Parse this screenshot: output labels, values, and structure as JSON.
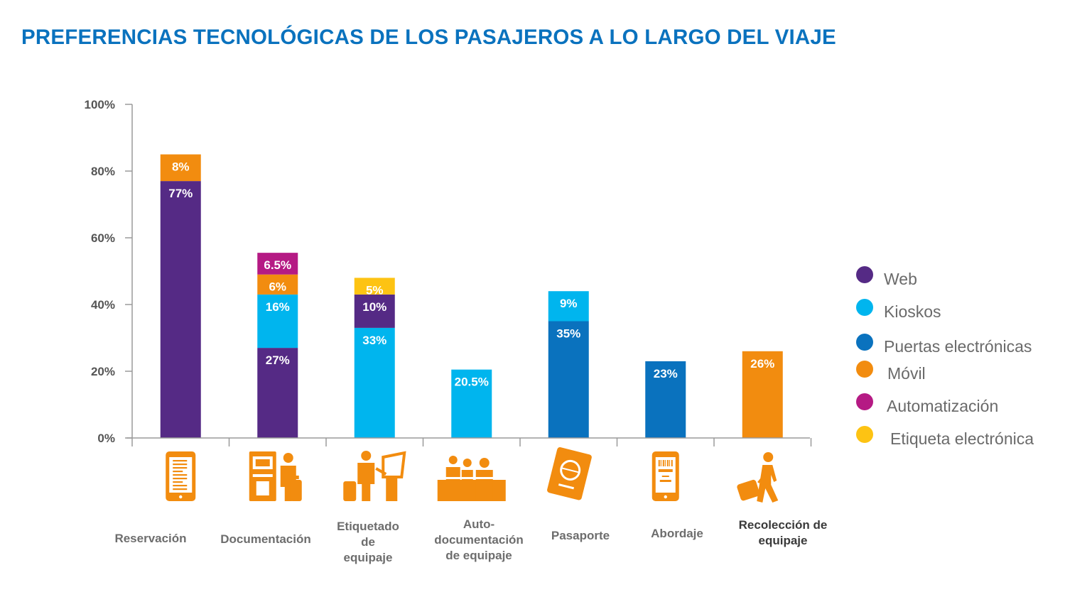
{
  "title": "PREFERENCIAS TECNOLÓGICAS DE LOS PASAJEROS A LO LARGO DEL VIAJE",
  "colors": {
    "Web": "#552a85",
    "Kioskos": "#00b5ee",
    "Puertas electrónicas": "#0a72be",
    "Móvil": "#f28c0f",
    "Automatización": "#b51a84",
    "Etiqueta electrónica": "#fdc313",
    "axis": "#9a9a9a",
    "icon": "#f28c0f"
  },
  "chart_data": {
    "type": "bar",
    "stacked": true,
    "title": "PREFERENCIAS TECNOLÓGICAS DE LOS PASAJEROS A LO LARGO DEL VIAJE",
    "ylim": [
      0,
      100
    ],
    "yticks": [
      0,
      20,
      40,
      60,
      80,
      100
    ],
    "ytick_labels": [
      "0%",
      "20%",
      "40%",
      "60%",
      "80%",
      "100%"
    ],
    "grid": false,
    "legend_position": "right",
    "categories": [
      {
        "lines": [
          "Reservación"
        ],
        "icon": "tablet-icon"
      },
      {
        "lines": [
          "Documentación"
        ],
        "icon": "kiosk-icon"
      },
      {
        "lines": [
          "Etiquetado",
          "de",
          "equipaje"
        ],
        "icon": "bag-tag-kiosk-icon"
      },
      {
        "lines": [
          "Auto-",
          "documentación",
          "de equipaje"
        ],
        "icon": "bag-drop-icon"
      },
      {
        "lines": [
          "Pasaporte"
        ],
        "icon": "passport-icon"
      },
      {
        "lines": [
          "Abordaje"
        ],
        "icon": "boarding-pass-phone-icon"
      },
      {
        "lines": [
          "Recolección de",
          "equipaje"
        ],
        "icon": "baggage-reclaim-icon",
        "dark": true
      }
    ],
    "series": [
      {
        "name": "Web",
        "values": [
          77,
          27,
          10,
          0,
          0,
          0,
          0
        ],
        "labels": [
          "77%",
          "27%",
          "10%",
          "",
          "",
          "",
          ""
        ]
      },
      {
        "name": "Kioskos",
        "values": [
          0,
          16,
          33,
          20.5,
          9,
          0,
          0
        ],
        "labels": [
          "",
          "16%",
          "33%",
          "20.5%",
          "9%",
          "",
          ""
        ]
      },
      {
        "name": "Puertas electrónicas",
        "values": [
          0,
          0,
          0,
          0,
          35,
          23,
          0
        ],
        "labels": [
          "",
          "",
          "",
          "",
          "35%",
          "23%",
          ""
        ]
      },
      {
        "name": "Móvil",
        "values": [
          8,
          6,
          0,
          0,
          0,
          0,
          26
        ],
        "labels": [
          "8%",
          "6%",
          "",
          "",
          "",
          "",
          "26%"
        ]
      },
      {
        "name": "Automatización",
        "values": [
          0,
          6.5,
          0,
          0,
          0,
          0,
          0
        ],
        "labels": [
          "",
          "6.5%",
          "",
          "",
          "",
          "",
          ""
        ]
      },
      {
        "name": "Etiqueta electrónica",
        "values": [
          0,
          0,
          5,
          0,
          0,
          0,
          0
        ],
        "labels": [
          "",
          "",
          "5%",
          "",
          "",
          "",
          ""
        ]
      }
    ],
    "stack_order": [
      [
        "Web",
        "Móvil"
      ],
      [
        "Web",
        "Kioskos",
        "Móvil",
        "Automatización"
      ],
      [
        "Kioskos",
        "Web",
        "Etiqueta electrónica"
      ],
      [
        "Kioskos"
      ],
      [
        "Puertas electrónicas",
        "Kioskos"
      ],
      [
        "Puertas electrónicas"
      ],
      [
        "Móvil"
      ]
    ],
    "legend": [
      "Web",
      "Kioskos",
      "Puertas electrónicas",
      "Móvil",
      "Automatización",
      "Etiqueta electrónica"
    ]
  }
}
